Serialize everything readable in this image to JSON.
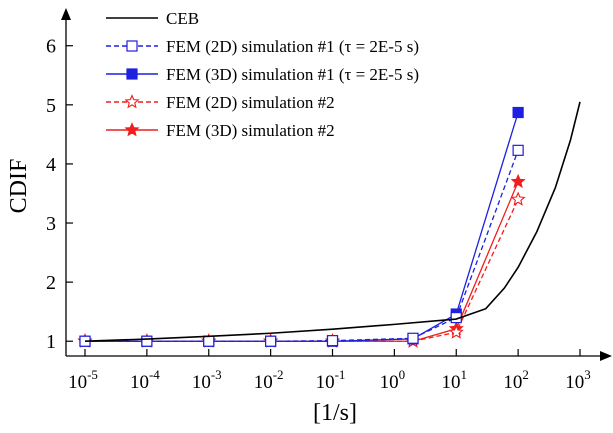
{
  "chart_data": {
    "type": "line",
    "xscale": "log",
    "xlabel": "[1/s]",
    "ylabel": "CDIF",
    "xlim": [
      1e-05,
      1000
    ],
    "ylim": [
      0.75,
      6.3
    ],
    "x_ticks": [
      {
        "value": 1e-05,
        "base": "10",
        "exp": "-5"
      },
      {
        "value": 0.0001,
        "base": "10",
        "exp": "-4"
      },
      {
        "value": 0.001,
        "base": "10",
        "exp": "-3"
      },
      {
        "value": 0.01,
        "base": "10",
        "exp": "-2"
      },
      {
        "value": 0.1,
        "base": "10",
        "exp": "-1"
      },
      {
        "value": 1,
        "base": "10",
        "exp": "0"
      },
      {
        "value": 10,
        "base": "10",
        "exp": "1"
      },
      {
        "value": 100,
        "base": "10",
        "exp": "2"
      },
      {
        "value": 1000,
        "base": "10",
        "exp": "3"
      }
    ],
    "y_ticks": [
      {
        "value": 1,
        "label": "1"
      },
      {
        "value": 2,
        "label": "2"
      },
      {
        "value": 3,
        "label": "3"
      },
      {
        "value": 4,
        "label": "4"
      },
      {
        "value": 5,
        "label": "5"
      },
      {
        "value": 6,
        "label": "6"
      }
    ],
    "legend_position": "top-left",
    "series": [
      {
        "name": "CEB",
        "color": "#000000",
        "dash": "solid",
        "marker": "none",
        "x": [
          1e-05,
          0.0001,
          0.001,
          0.01,
          0.1,
          1,
          10,
          30,
          60,
          100,
          200,
          400,
          700,
          1000
        ],
        "y": [
          1.0,
          1.037,
          1.083,
          1.135,
          1.204,
          1.285,
          1.375,
          1.55,
          1.9,
          2.25,
          2.85,
          3.6,
          4.4,
          5.05
        ]
      },
      {
        "name": "FEM (2D) simulation #1 (τ = 2E-5 s)",
        "color": "#1f1fe0",
        "dash": "dashed",
        "marker": "square-open",
        "x": [
          1e-05,
          0.0001,
          0.001,
          0.01,
          0.1,
          2,
          10,
          100
        ],
        "y": [
          1.0,
          1.0,
          1.0,
          1.0,
          1.01,
          1.05,
          1.4,
          4.23
        ]
      },
      {
        "name": "FEM (3D) simulation #1 (τ = 2E-5 s)",
        "color": "#1f1fe0",
        "dash": "solid",
        "marker": "square-filled",
        "x": [
          1e-05,
          0.0001,
          0.001,
          0.01,
          0.1,
          2,
          10,
          100
        ],
        "y": [
          1.0,
          1.0,
          1.0,
          1.0,
          1.0,
          1.04,
          1.46,
          4.87
        ]
      },
      {
        "name": "FEM (2D) simulation #2",
        "color": "#f01e1e",
        "dash": "dashed",
        "marker": "star-open",
        "x": [
          1e-05,
          0.0001,
          0.001,
          0.01,
          0.1,
          2,
          10,
          100
        ],
        "y": [
          1.0,
          1.0,
          1.0,
          1.0,
          1.0,
          1.0,
          1.15,
          3.4
        ]
      },
      {
        "name": "FEM (3D) simulation #2",
        "color": "#f01e1e",
        "dash": "solid",
        "marker": "star-filled",
        "x": [
          1e-05,
          0.0001,
          0.001,
          0.01,
          0.1,
          2,
          10,
          100
        ],
        "y": [
          1.0,
          1.0,
          1.0,
          1.0,
          1.0,
          1.0,
          1.21,
          3.7
        ]
      }
    ]
  }
}
